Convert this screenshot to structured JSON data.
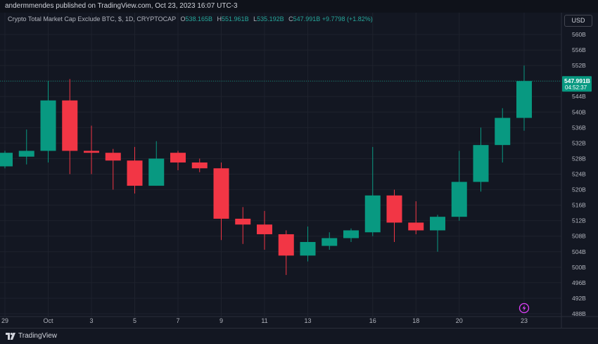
{
  "header": {
    "published": "andermmendes published on TradingView.com, Oct 23, 2023 16:07 UTC-3"
  },
  "legend": {
    "symbol": "Crypto Total Market Cap Exclude BTC, $, 1D, CRYPTOCAP",
    "o_label": "O",
    "o": "538.165B",
    "h_label": "H",
    "h": "551.961B",
    "l_label": "L",
    "l": "535.192B",
    "c_label": "C",
    "c": "547.991B",
    "change": "+9.7798 (+1.82%)"
  },
  "currency_button": "USD",
  "price_tag": {
    "price": "547.991B",
    "countdown": "04:52:37"
  },
  "brand": {
    "name": "TradingView"
  },
  "colors": {
    "up": "#089981",
    "down": "#f23645",
    "background": "#131722",
    "grid": "#1e222d"
  },
  "chart_data": {
    "type": "candlestick",
    "y_unit": "B",
    "ylim": [
      488,
      562
    ],
    "y_ticks": [
      488,
      492,
      496,
      500,
      504,
      508,
      512,
      516,
      520,
      524,
      528,
      532,
      536,
      540,
      544,
      548,
      552,
      556,
      560
    ],
    "y_tick_labels": [
      "488B",
      "492B",
      "496B",
      "500B",
      "504B",
      "508B",
      "512B",
      "516B",
      "520B",
      "524B",
      "528B",
      "532B",
      "536B",
      "540B",
      "544B",
      "548B",
      "552B",
      "556B",
      "560B"
    ],
    "x_tick_labels": [
      "29",
      "Oct",
      "3",
      "5",
      "7",
      "9",
      "11",
      "13",
      "16",
      "18",
      "20",
      "23"
    ],
    "x_tick_index": [
      0,
      2,
      4,
      6,
      8,
      10,
      12,
      14,
      17,
      19,
      21,
      24
    ],
    "last_price": 547.991,
    "candles": [
      {
        "o": 526.0,
        "h": 530.0,
        "l": 525.5,
        "c": 529.5
      },
      {
        "o": 528.5,
        "h": 535.5,
        "l": 526.5,
        "c": 530.0
      },
      {
        "o": 530.0,
        "h": 548.0,
        "l": 527.0,
        "c": 543.0
      },
      {
        "o": 543.0,
        "h": 548.5,
        "l": 524.0,
        "c": 530.0
      },
      {
        "o": 530.0,
        "h": 536.5,
        "l": 524.0,
        "c": 529.5
      },
      {
        "o": 529.5,
        "h": 530.5,
        "l": 520.0,
        "c": 527.5
      },
      {
        "o": 527.5,
        "h": 531.0,
        "l": 519.0,
        "c": 521.0
      },
      {
        "o": 521.0,
        "h": 532.5,
        "l": 521.0,
        "c": 528.0
      },
      {
        "o": 529.5,
        "h": 530.0,
        "l": 525.0,
        "c": 527.0
      },
      {
        "o": 527.0,
        "h": 528.0,
        "l": 524.5,
        "c": 525.5
      },
      {
        "o": 525.5,
        "h": 527.0,
        "l": 507.0,
        "c": 512.5
      },
      {
        "o": 512.5,
        "h": 515.5,
        "l": 506.0,
        "c": 511.0
      },
      {
        "o": 511.0,
        "h": 514.5,
        "l": 504.5,
        "c": 508.5
      },
      {
        "o": 508.5,
        "h": 509.5,
        "l": 498.0,
        "c": 503.0
      },
      {
        "o": 503.0,
        "h": 510.5,
        "l": 501.5,
        "c": 506.5
      },
      {
        "o": 505.5,
        "h": 509.0,
        "l": 504.5,
        "c": 507.5
      },
      {
        "o": 507.5,
        "h": 510.0,
        "l": 506.5,
        "c": 509.5
      },
      {
        "o": 509.0,
        "h": 531.0,
        "l": 508.0,
        "c": 518.5
      },
      {
        "o": 518.5,
        "h": 520.0,
        "l": 506.5,
        "c": 511.5
      },
      {
        "o": 511.5,
        "h": 517.0,
        "l": 508.5,
        "c": 509.5
      },
      {
        "o": 509.5,
        "h": 513.5,
        "l": 504.0,
        "c": 513.0
      },
      {
        "o": 513.0,
        "h": 530.0,
        "l": 512.0,
        "c": 522.0
      },
      {
        "o": 522.0,
        "h": 536.0,
        "l": 519.5,
        "c": 531.5
      },
      {
        "o": 531.5,
        "h": 541.0,
        "l": 527.0,
        "c": 538.5
      },
      {
        "o": 538.5,
        "h": 552.0,
        "l": 535.2,
        "c": 548.0
      }
    ]
  }
}
